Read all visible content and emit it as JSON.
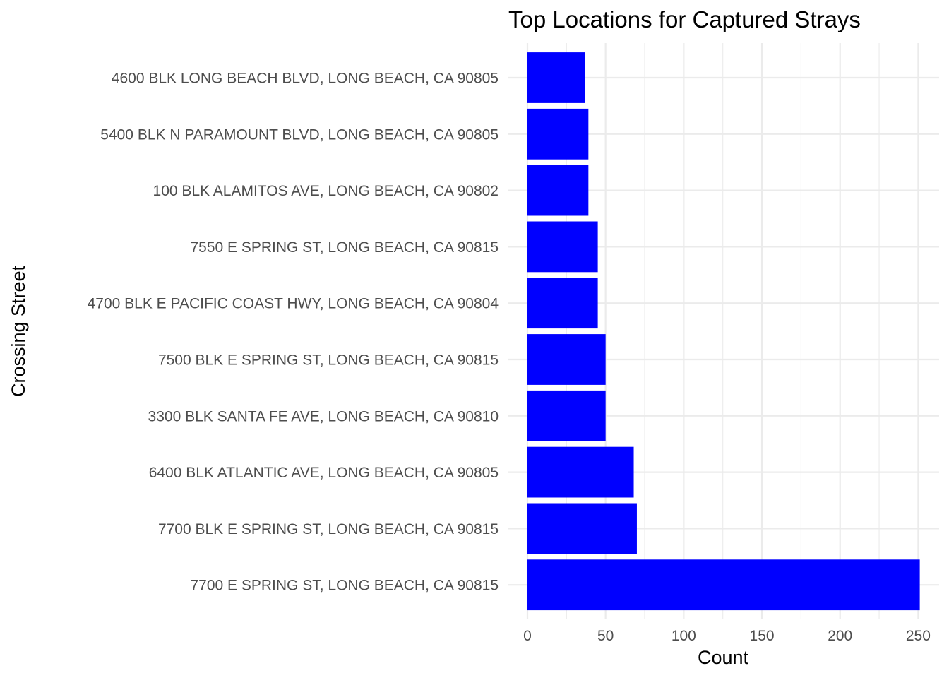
{
  "chart_data": {
    "type": "bar",
    "orientation": "horizontal",
    "title": "Top Locations for Captured Strays",
    "xlabel": "Count",
    "ylabel": "Crossing Street",
    "xlim": [
      0,
      255
    ],
    "x_ticks": [
      0,
      50,
      100,
      150,
      200,
      250
    ],
    "grid": true,
    "legend": "none",
    "bar_color": "#0000ff",
    "categories": [
      "4600 BLK LONG BEACH BLVD, LONG BEACH, CA 90805",
      "5400 BLK N PARAMOUNT BLVD, LONG BEACH, CA 90805",
      "100 BLK ALAMITOS AVE, LONG BEACH, CA 90802",
      "7550 E SPRING ST, LONG BEACH, CA 90815",
      "4700 BLK E PACIFIC COAST HWY, LONG BEACH, CA 90804",
      "7500 BLK E SPRING ST, LONG BEACH, CA 90815",
      "3300 BLK SANTA FE AVE, LONG BEACH, CA 90810",
      "6400 BLK ATLANTIC AVE, LONG BEACH, CA 90805",
      "7700 BLK E SPRING ST, LONG BEACH, CA 90815",
      "7700 E SPRING ST, LONG BEACH, CA 90815"
    ],
    "values": [
      37,
      39,
      39,
      45,
      45,
      50,
      50,
      68,
      70,
      251
    ]
  }
}
